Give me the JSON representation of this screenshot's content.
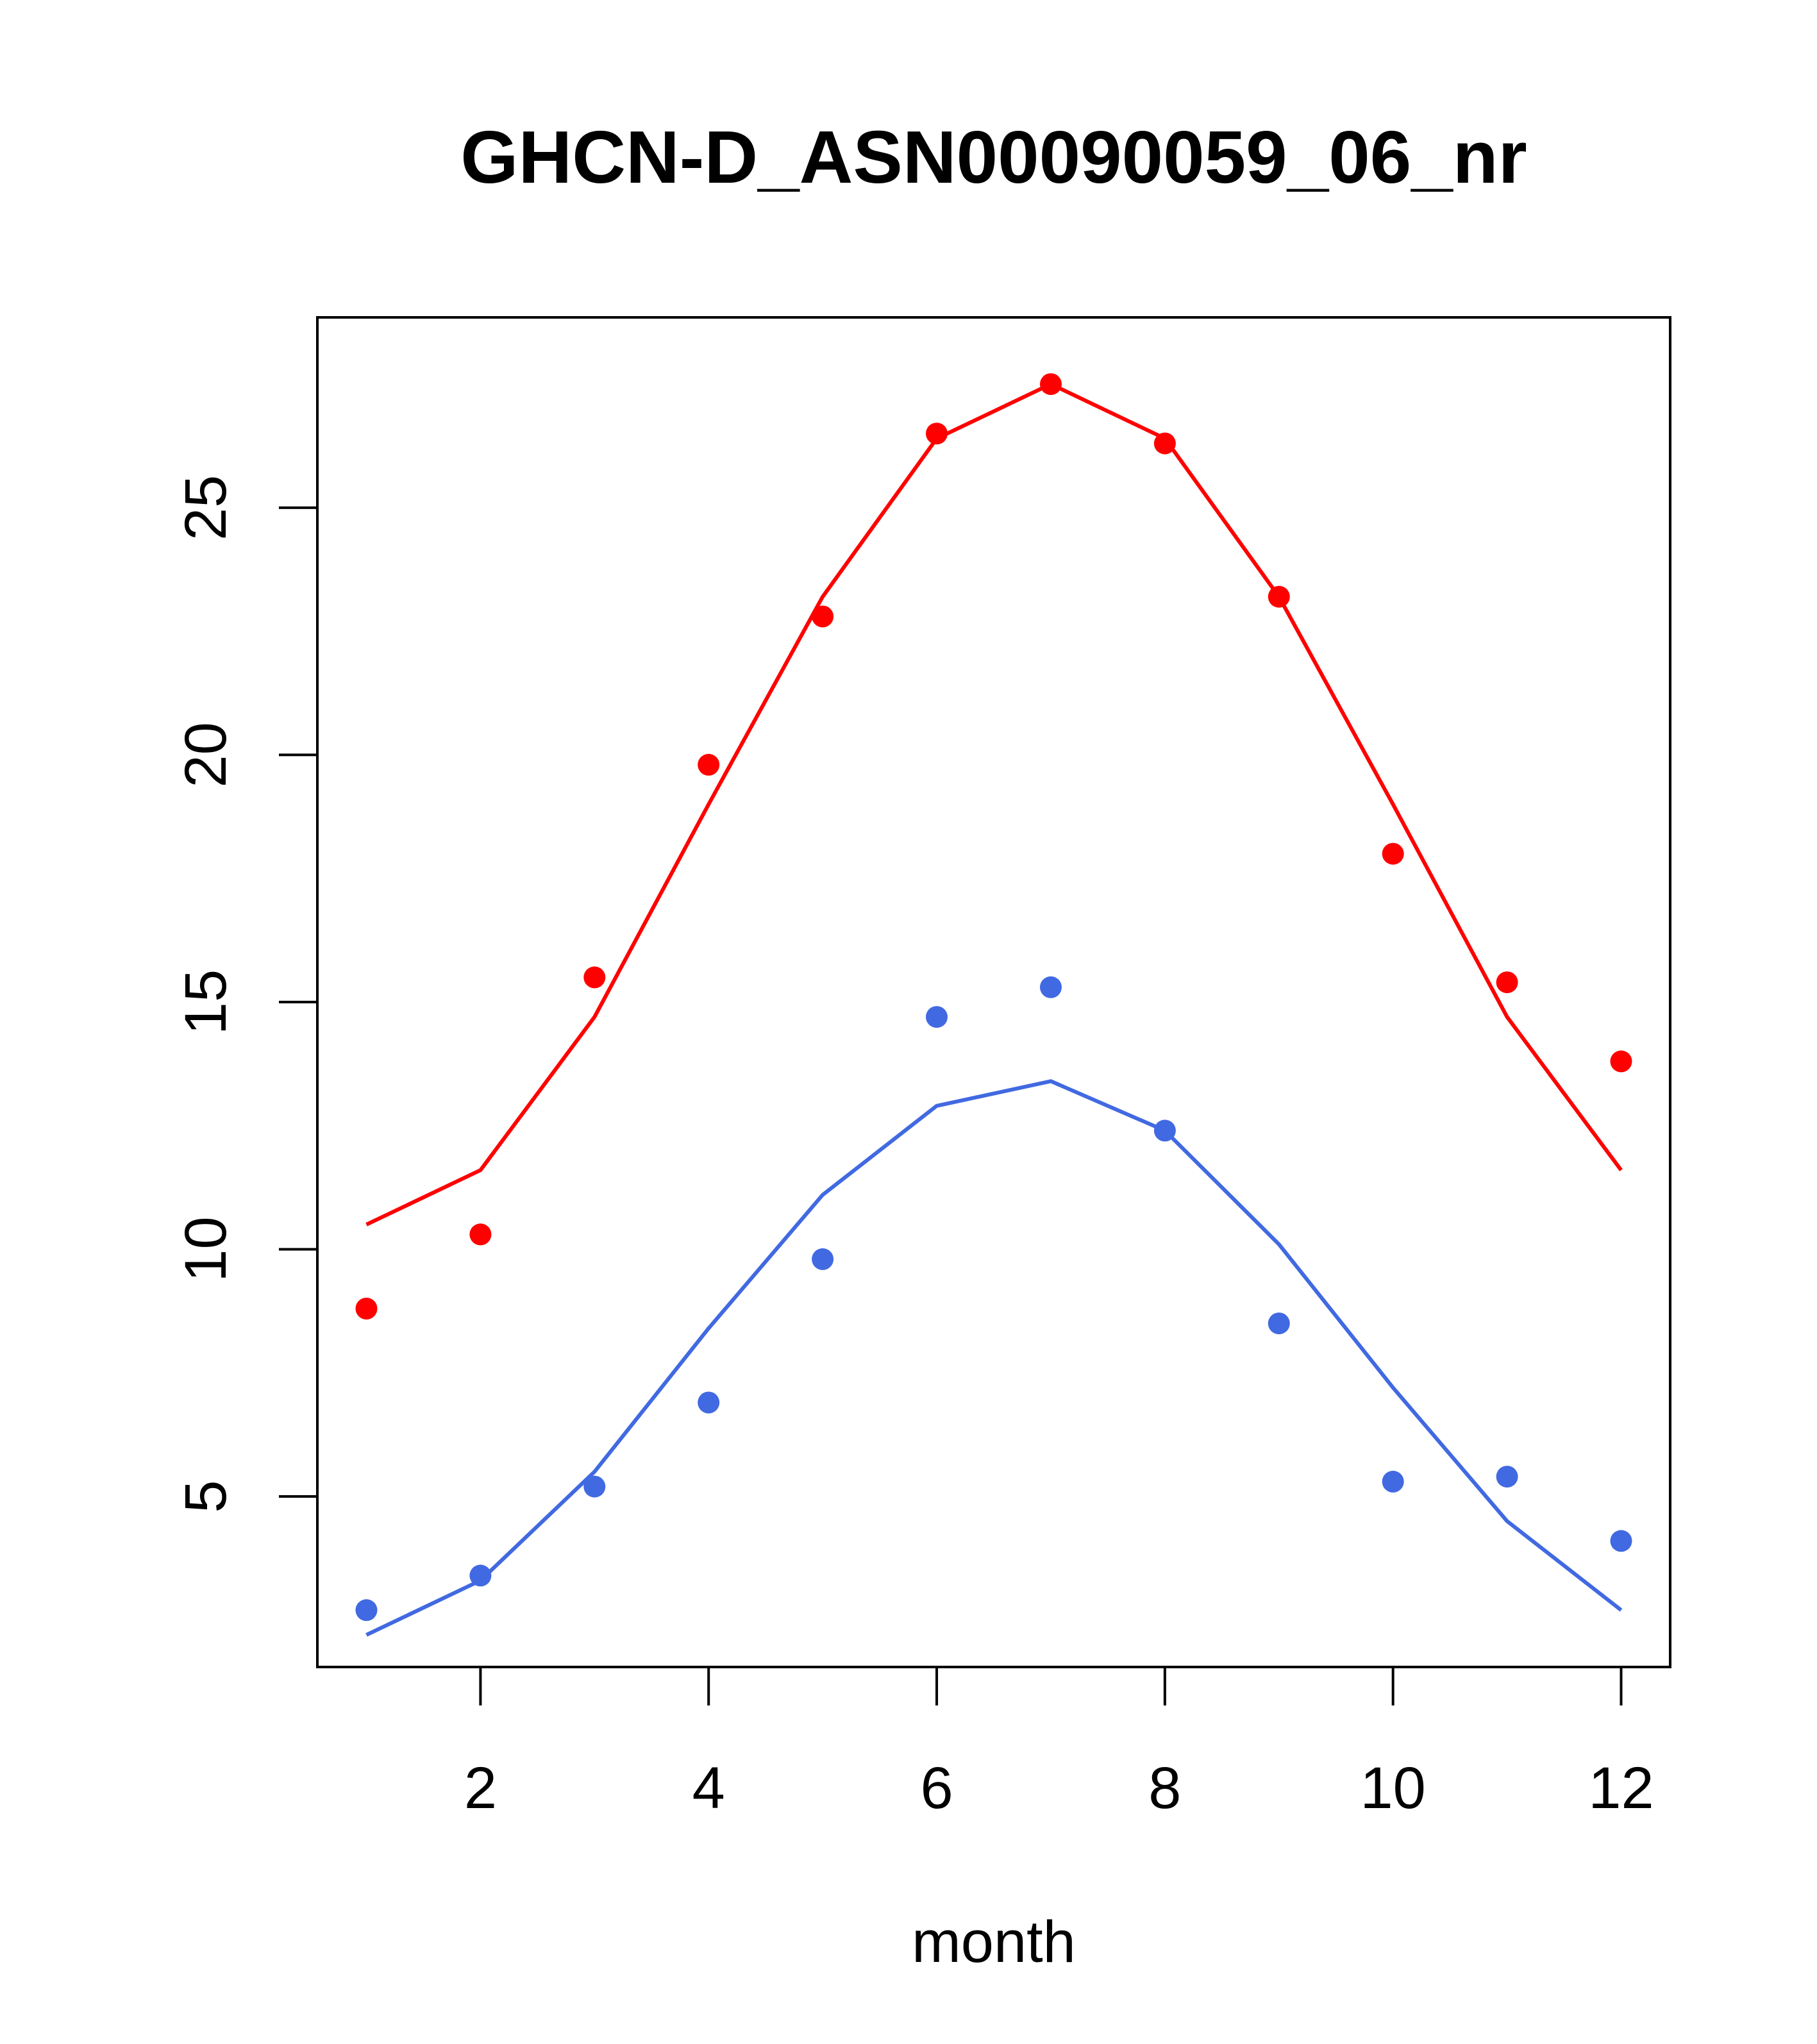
{
  "chart_data": {
    "type": "scatter",
    "title": "GHCN-D_ASN00090059_06_nr",
    "xlabel": "month",
    "ylabel": "",
    "xlim": [
      0.57,
      12.43
    ],
    "ylim": [
      1.55,
      28.85
    ],
    "x_ticks": [
      2,
      4,
      6,
      8,
      10,
      12
    ],
    "y_ticks": [
      5,
      10,
      15,
      20,
      25
    ],
    "grid": false,
    "legend": "none",
    "series": [
      {
        "color": "#ff0000",
        "points_x": [
          1,
          2,
          3,
          4,
          5,
          6,
          7,
          8,
          9,
          10,
          11,
          12
        ],
        "points_y": [
          8.8,
          10.3,
          15.5,
          19.8,
          22.8,
          26.5,
          27.5,
          26.3,
          23.2,
          18.0,
          15.4,
          13.8
        ],
        "line_x": [
          1,
          2,
          3,
          4,
          5,
          6,
          7,
          8,
          9,
          10,
          11,
          12
        ],
        "line_y": [
          10.5,
          11.6,
          14.7,
          19.0,
          23.2,
          26.4,
          27.5,
          26.4,
          23.2,
          19.0,
          14.7,
          11.6
        ]
      },
      {
        "color": "#4169e1",
        "points_x": [
          1,
          2,
          3,
          4,
          5,
          6,
          7,
          8,
          9,
          10,
          11,
          12
        ],
        "points_y": [
          2.7,
          3.4,
          5.2,
          6.9,
          9.8,
          14.7,
          15.3,
          12.4,
          8.5,
          5.3,
          5.4,
          4.1
        ],
        "line_x": [
          1,
          2,
          3,
          4,
          5,
          6,
          7,
          8,
          9,
          10,
          11,
          12
        ],
        "line_y": [
          2.2,
          3.3,
          5.5,
          8.4,
          11.1,
          12.9,
          13.4,
          12.4,
          10.1,
          7.2,
          4.5,
          2.7
        ]
      }
    ]
  }
}
